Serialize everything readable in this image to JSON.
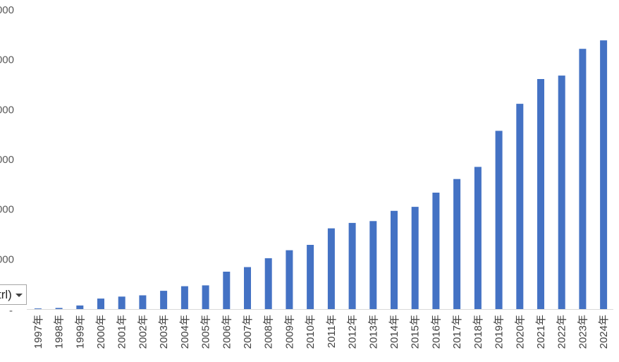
{
  "chart_data": {
    "type": "bar",
    "categories": [
      "1997年",
      "1998年",
      "1999年",
      "2000年",
      "2001年",
      "2002年",
      "2003年",
      "2004年",
      "2005年",
      "2006年",
      "2007年",
      "2008年",
      "2009年",
      "2010年",
      "2011年",
      "2012年",
      "2013年",
      "2014年",
      "2015年",
      "2016年",
      "2017年",
      "2018年",
      "2019年",
      "2020年",
      "2021年",
      "2022年",
      "2023年",
      "2024年"
    ],
    "values": [
      90,
      160,
      520,
      1510,
      1790,
      1980,
      2630,
      3290,
      3410,
      5370,
      6030,
      7310,
      8460,
      9230,
      11600,
      12380,
      12650,
      14120,
      14700,
      16730,
      18690,
      20440,
      25620,
      29500,
      33060,
      33560,
      37400,
      38620
    ],
    "yticks": [
      "000",
      "000",
      "000",
      "000",
      "000",
      "000",
      "-"
    ],
    "ylim": [
      0,
      43000
    ],
    "bar_color": "#4472c4",
    "title": "",
    "xlabel": "",
    "ylabel": ""
  },
  "paste_options": {
    "label": "trl)",
    "icon": "chevron-down-icon"
  }
}
